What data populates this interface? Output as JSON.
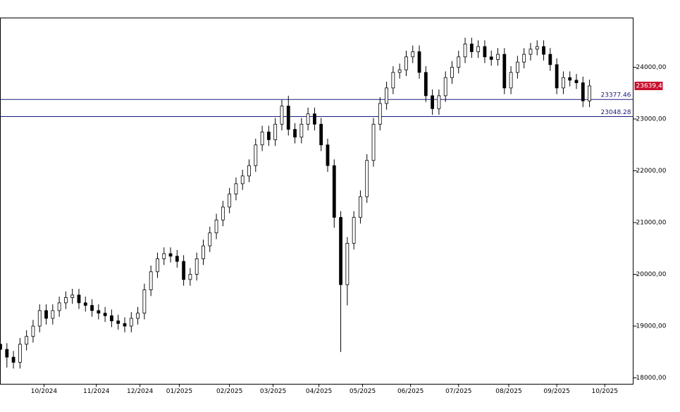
{
  "chart_data": {
    "type": "candlestick",
    "x": [
      0,
      3,
      6,
      9,
      12,
      15,
      18,
      21,
      24,
      27,
      30,
      33,
      36,
      39,
      42,
      45,
      48,
      51,
      54,
      57,
      60,
      63,
      66,
      69,
      72,
      75,
      78,
      81,
      84,
      87,
      90,
      93,
      96,
      99,
      102,
      105,
      108,
      111,
      114,
      117,
      120,
      123,
      126,
      129,
      132,
      135,
      138,
      141,
      144,
      147,
      150,
      153,
      156,
      159,
      162,
      165,
      168,
      171,
      174,
      177,
      180,
      183,
      186,
      189,
      192,
      195,
      198,
      201,
      204,
      207,
      210,
      213,
      216,
      219,
      222,
      225,
      228,
      231,
      234,
      237,
      240,
      243,
      246,
      249,
      252,
      255,
      258,
      261,
      264,
      267,
      270
    ],
    "open": [
      18650,
      18550,
      18400,
      18300,
      18650,
      18800,
      19000,
      19300,
      19150,
      19300,
      19450,
      19550,
      19600,
      19450,
      19400,
      19300,
      19250,
      19200,
      19100,
      19050,
      19000,
      19150,
      19250,
      19700,
      20050,
      20300,
      20400,
      20350,
      20250,
      19900,
      20000,
      20300,
      20550,
      20800,
      21050,
      21300,
      21550,
      21750,
      21900,
      22100,
      22500,
      22750,
      22600,
      22900,
      23250,
      22800,
      22650,
      22900,
      23100,
      22900,
      22500,
      22100,
      21100,
      19800,
      20600,
      21100,
      21500,
      22200,
      22900,
      23300,
      23600,
      23900,
      23950,
      24200,
      24300,
      23900,
      23450,
      23200,
      23450,
      23800,
      24000,
      24200,
      24450,
      24300,
      24400,
      24200,
      24150,
      24250,
      23600,
      23900,
      24100,
      24250,
      24350,
      24400,
      24250,
      24050,
      23600,
      23800,
      23750,
      23700,
      23350
    ],
    "high": [
      18770,
      18670,
      18520,
      18770,
      18920,
      19120,
      19420,
      19420,
      19420,
      19570,
      19670,
      19720,
      19720,
      19570,
      19520,
      19420,
      19370,
      19320,
      19220,
      19170,
      19270,
      19370,
      19820,
      20170,
      20420,
      20520,
      20520,
      20470,
      20370,
      20120,
      20420,
      20670,
      20920,
      21170,
      21420,
      21670,
      21870,
      22020,
      22220,
      22620,
      22870,
      22870,
      23020,
      23370,
      23450,
      22920,
      23020,
      23220,
      23220,
      23020,
      22620,
      22220,
      21220,
      20720,
      21220,
      21620,
      22320,
      23020,
      23420,
      23720,
      24020,
      24070,
      24320,
      24420,
      24420,
      24020,
      23570,
      23570,
      23920,
      24120,
      24320,
      24570,
      24570,
      24520,
      24520,
      24320,
      24370,
      24370,
      24020,
      24220,
      24370,
      24470,
      24520,
      24520,
      24370,
      24170,
      23920,
      23920,
      23870,
      23820,
      23760
    ],
    "low": [
      18430,
      18200,
      18180,
      18180,
      18530,
      18680,
      18880,
      19030,
      19030,
      19180,
      19330,
      19430,
      19330,
      19280,
      19180,
      19130,
      19080,
      18980,
      18930,
      18880,
      18880,
      19030,
      19130,
      19580,
      19930,
      20180,
      20230,
      20130,
      19780,
      19780,
      19880,
      20180,
      20430,
      20680,
      20930,
      21180,
      21430,
      21630,
      21780,
      21980,
      22380,
      22480,
      22480,
      22780,
      22680,
      22530,
      22530,
      22780,
      22780,
      22380,
      21980,
      20900,
      18500,
      19400,
      20480,
      20980,
      21380,
      22080,
      22780,
      23180,
      23480,
      23780,
      23830,
      24080,
      23780,
      23330,
      23080,
      23080,
      23330,
      23680,
      23880,
      24080,
      24180,
      24180,
      24080,
      24030,
      24030,
      23480,
      23480,
      23780,
      23980,
      24130,
      24230,
      24130,
      23930,
      23480,
      23480,
      23630,
      23580,
      23230,
      23230
    ],
    "close": [
      18550,
      18400,
      18300,
      18650,
      18800,
      19000,
      19300,
      19150,
      19300,
      19450,
      19550,
      19600,
      19450,
      19400,
      19300,
      19250,
      19200,
      19100,
      19050,
      19000,
      19150,
      19250,
      19700,
      20050,
      20300,
      20400,
      20350,
      20250,
      19900,
      20000,
      20300,
      20550,
      20800,
      21050,
      21300,
      21550,
      21750,
      21900,
      22100,
      22500,
      22750,
      22600,
      22900,
      23250,
      22800,
      22650,
      22900,
      23100,
      22900,
      22500,
      22100,
      21100,
      19800,
      20600,
      21100,
      21500,
      22200,
      22900,
      23300,
      23600,
      23900,
      23950,
      24200,
      24300,
      23900,
      23450,
      23200,
      23450,
      23800,
      24000,
      24200,
      24450,
      24300,
      24400,
      24200,
      24150,
      24250,
      23600,
      23900,
      24100,
      24250,
      24350,
      24400,
      24250,
      24050,
      23600,
      23800,
      23750,
      23700,
      23350,
      23639.41
    ],
    "xlim": [
      0,
      290
    ],
    "xticks": [
      {
        "value": 20,
        "label": "10/2024"
      },
      {
        "value": 44,
        "label": "11/2024"
      },
      {
        "value": 64,
        "label": "12/2024"
      },
      {
        "value": 82,
        "label": "01/2025"
      },
      {
        "value": 105,
        "label": "02/2025"
      },
      {
        "value": 125,
        "label": "03/2025"
      },
      {
        "value": 146,
        "label": "04/2025"
      },
      {
        "value": 166,
        "label": "05/2025"
      },
      {
        "value": 188,
        "label": "06/2025"
      },
      {
        "value": 210,
        "label": "07/2025"
      },
      {
        "value": 233,
        "label": "08/2025"
      },
      {
        "value": 255,
        "label": "09/2025"
      },
      {
        "value": 277,
        "label": "10/2025"
      }
    ],
    "ylim": [
      17878,
      24952
    ],
    "yticks": [
      {
        "value": 18000,
        "label": "18000,00"
      },
      {
        "value": 19000,
        "label": "19000,00"
      },
      {
        "value": 20000,
        "label": "20000,00"
      },
      {
        "value": 21000,
        "label": "21000,00"
      },
      {
        "value": 22000,
        "label": "22000,00"
      },
      {
        "value": 23000,
        "label": "23000,00"
      },
      {
        "value": 24000,
        "label": "24000,00"
      }
    ],
    "levels": [
      {
        "value": 23377.46,
        "label": "23377.46"
      },
      {
        "value": 23048.28,
        "label": "23048.28"
      }
    ],
    "level_color": "#1a1a80",
    "last_price": {
      "value": 23639.41,
      "label": "23639,41"
    },
    "last_price_color": "#c8102e"
  }
}
